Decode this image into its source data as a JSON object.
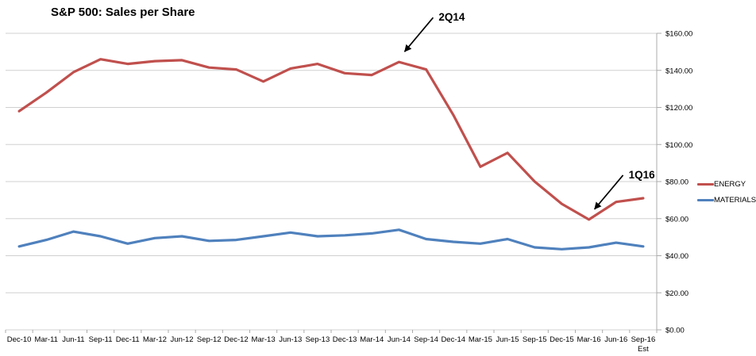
{
  "chart_data": {
    "type": "line",
    "title": "S&P 500: Sales per Share",
    "categories": [
      "Dec-10",
      "Mar-11",
      "Jun-11",
      "Sep-11",
      "Dec-11",
      "Mar-12",
      "Jun-12",
      "Sep-12",
      "Dec-12",
      "Mar-13",
      "Jun-13",
      "Sep-13",
      "Dec-13",
      "Mar-14",
      "Jun-14",
      "Sep-14",
      "Dec-14",
      "Mar-15",
      "Jun-15",
      "Sep-15",
      "Dec-15",
      "Mar-16",
      "Jun-16",
      "Sep-16"
    ],
    "x_footnote": {
      "index": 23,
      "text": "Est"
    },
    "series": [
      {
        "name": "ENERGY",
        "color": "#C0504D",
        "values": [
          118,
          128,
          139,
          146,
          143.5,
          145,
          145.5,
          141.5,
          140.5,
          134,
          141,
          143.5,
          138.5,
          137.5,
          144.5,
          140.5,
          116,
          88,
          95.5,
          80,
          68,
          59.5,
          69,
          71
        ]
      },
      {
        "name": "MATERIALS",
        "color": "#4F81BD",
        "values": [
          45,
          48.5,
          53,
          50.5,
          46.5,
          49.5,
          50.5,
          48,
          48.5,
          50.5,
          52.5,
          50.5,
          51,
          52,
          54,
          49,
          47.5,
          46.5,
          49,
          44.5,
          43.5,
          44.5,
          47,
          45
        ]
      }
    ],
    "y_axis": {
      "min": 0,
      "max": 160,
      "step": 20,
      "side": "right",
      "tick_labels": [
        "$0.00",
        "$20.00",
        "$40.00",
        "$60.00",
        "$80.00",
        "$100.00",
        "$120.00",
        "$140.00",
        "$160.00"
      ]
    },
    "annotations": [
      {
        "label": "2Q14",
        "series": 0,
        "index": 14
      },
      {
        "label": "1Q16",
        "series": 0,
        "index": 21
      }
    ],
    "grid": true,
    "legend_position": "right"
  },
  "colors": {
    "background": "#FFFFFF",
    "gridline": "#D0D0D0",
    "axis": "#ABABAB",
    "label_text": "#000000",
    "annotation": "#000000"
  }
}
